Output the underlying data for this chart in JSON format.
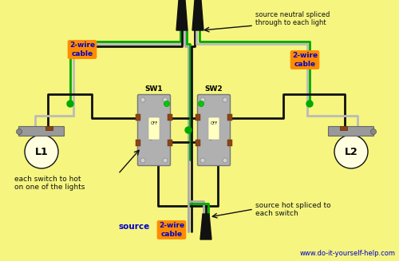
{
  "bg_color": "#f5f580",
  "website": "www.do-it-yourself-help.com",
  "wire_colors": {
    "black": "#111111",
    "white": "#bbbbbb",
    "green": "#00aa00",
    "gray": "#aaaaaa"
  },
  "label_bg": "#FF8C00",
  "label_fg": "#0000CC",
  "sw1_label": "SW1",
  "sw2_label": "SW2",
  "l1_label": "L1",
  "l2_label": "L2",
  "source_label": "source",
  "cable_label": "2-wire\ncable",
  "ann_top_right": "source neutral spliced\nthrough to each light",
  "ann_bot_left_1": "each switch to hot",
  "ann_bot_left_2": "on one of the lights",
  "ann_bot_right": "source hot spliced to\neach switch"
}
